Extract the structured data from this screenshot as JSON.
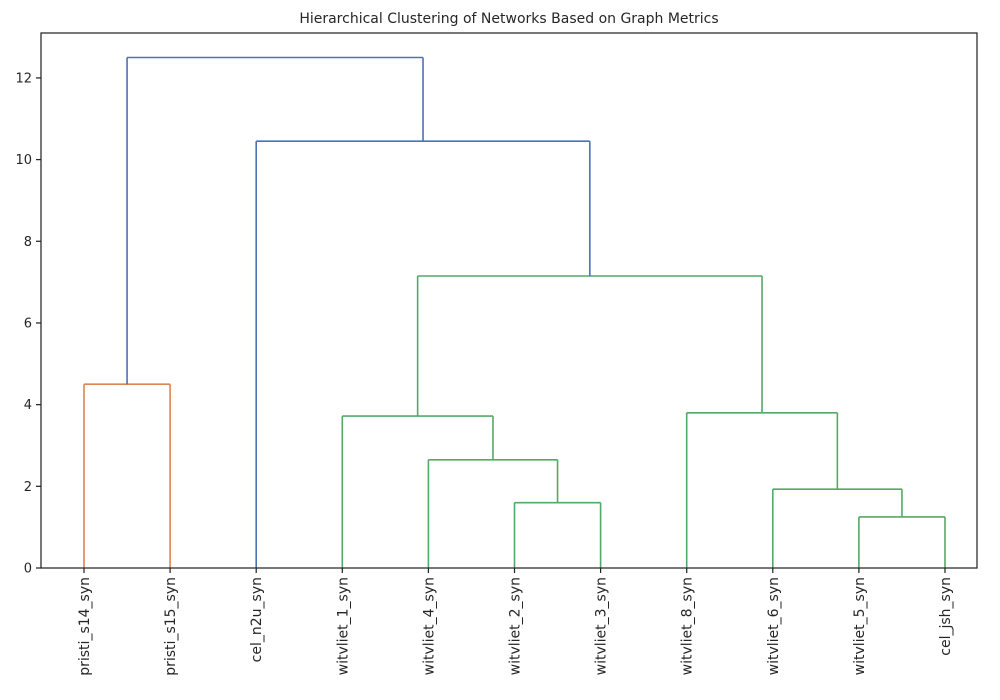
{
  "chart_data": {
    "type": "dendrogram",
    "title": "Hierarchical Clustering of Networks Based on Graph Metrics",
    "xlabel": "",
    "ylabel": "",
    "ylim": [
      0,
      13.1
    ],
    "y_ticks": [
      0,
      2,
      4,
      6,
      8,
      10,
      12
    ],
    "grid": false,
    "colors": {
      "orange": "#dd8452",
      "blue": "#4c72b0",
      "green": "#55a868",
      "axis": "#262626"
    },
    "leaves": [
      "pristi_s14_syn",
      "pristi_s15_syn",
      "cel_n2u_syn",
      "witvliet_1_syn",
      "witvliet_4_syn",
      "witvliet_2_syn",
      "witvliet_3_syn",
      "witvliet_8_syn",
      "witvliet_6_syn",
      "witvliet_5_syn",
      "cel_jsh_syn"
    ],
    "merges": [
      {
        "left": "pristi_s14_syn",
        "right": "pristi_s15_syn",
        "height": 4.5,
        "color": "orange"
      },
      {
        "left": "witvliet_2_syn",
        "right": "witvliet_3_syn",
        "height": 1.6,
        "color": "green"
      },
      {
        "left": "witvliet_4_syn",
        "right": "(witvliet_2_syn, witvliet_3_syn)",
        "height": 2.65,
        "color": "green"
      },
      {
        "left": "witvliet_1_syn",
        "right": "(witvliet_4_syn, witvliet_2_syn, witvliet_3_syn)",
        "height": 3.72,
        "color": "green"
      },
      {
        "left": "witvliet_5_syn",
        "right": "cel_jsh_syn",
        "height": 1.25,
        "color": "green"
      },
      {
        "left": "witvliet_6_syn",
        "right": "(witvliet_5_syn, cel_jsh_syn)",
        "height": 1.93,
        "color": "green"
      },
      {
        "left": "witvliet_8_syn",
        "right": "(witvliet_6_syn, witvliet_5_syn, cel_jsh_syn)",
        "height": 3.8,
        "color": "green"
      },
      {
        "left": "(witvliet_1_syn ... witvliet_3_syn)",
        "right": "(witvliet_8_syn ... cel_jsh_syn)",
        "height": 7.15,
        "color": "green"
      },
      {
        "left": "cel_n2u_syn",
        "right": "(witvliet_1_syn ... cel_jsh_syn)",
        "height": 10.45,
        "color": "blue"
      },
      {
        "left": "(pristi_s14_syn, pristi_s15_syn)",
        "right": "(cel_n2u_syn ... cel_jsh_syn)",
        "height": 12.5,
        "color": "blue"
      }
    ]
  }
}
